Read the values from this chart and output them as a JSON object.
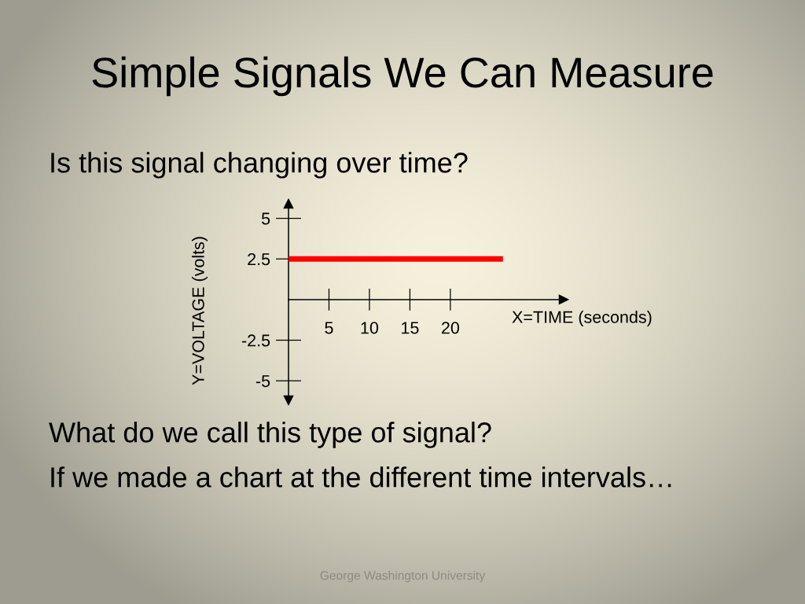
{
  "chart_data": {
    "type": "line",
    "title": "Simple Signals We Can Measure",
    "subtitle": "Is this signal changing over time?",
    "xlabel": "X=TIME (seconds)",
    "ylabel": "Y=VOLTAGE (volts)",
    "x": [
      0,
      26.5
    ],
    "series": [
      {
        "color": "#ff0000",
        "values": [
          2.5,
          2.5
        ]
      }
    ],
    "xlim": [
      0,
      34
    ],
    "ylim": [
      -6.2,
      5.9
    ],
    "xticks": [
      5,
      10,
      15,
      20
    ],
    "yticks": [
      -5,
      -2.5,
      2.5,
      5
    ],
    "grid": false,
    "marker": "none",
    "line_style": "solid",
    "annotations": [
      "What do we call this type of signal?",
      "If we made a chart at the different time intervals…",
      "George Washington University"
    ]
  }
}
